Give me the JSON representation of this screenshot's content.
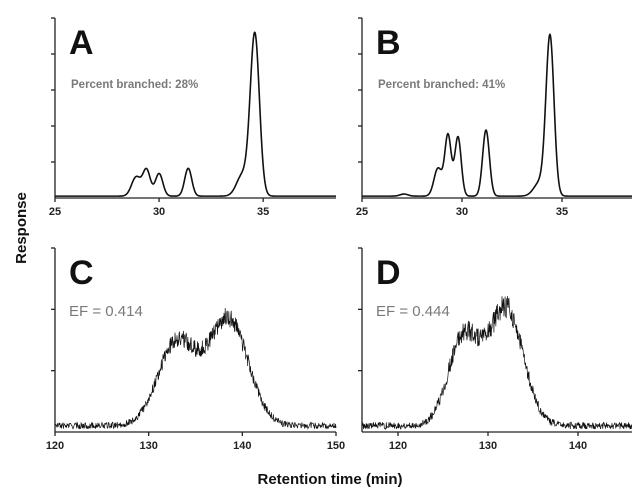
{
  "figure": {
    "ylabel": "Response",
    "xlabel": "Retention time (min)"
  },
  "chart_data": [
    {
      "panel": "A",
      "type": "line",
      "annotation": "Percent branched: 28%",
      "xlim": [
        25,
        38.5
      ],
      "ylim": [
        0,
        1
      ],
      "xticks": [
        25,
        30,
        35
      ],
      "yticks": 5,
      "baseline": 0.005,
      "noise": 0,
      "peaks": [
        {
          "center": 28.9,
          "height": 0.11,
          "width": 0.22
        },
        {
          "center": 29.4,
          "height": 0.15,
          "width": 0.18
        },
        {
          "center": 30.0,
          "height": 0.13,
          "width": 0.18
        },
        {
          "center": 31.4,
          "height": 0.16,
          "width": 0.17
        },
        {
          "center": 34.0,
          "height": 0.12,
          "width": 0.28
        },
        {
          "center": 34.6,
          "height": 0.93,
          "width": 0.22
        }
      ]
    },
    {
      "panel": "B",
      "type": "line",
      "annotation": "Percent branched: 41%",
      "xlim": [
        25,
        38.5
      ],
      "ylim": [
        0,
        1
      ],
      "xticks": [
        25,
        30,
        35
      ],
      "yticks": 5,
      "baseline": 0.005,
      "noise": 0,
      "peaks": [
        {
          "center": 27.1,
          "height": 0.012,
          "width": 0.2
        },
        {
          "center": 28.8,
          "height": 0.16,
          "width": 0.2
        },
        {
          "center": 29.3,
          "height": 0.35,
          "width": 0.16
        },
        {
          "center": 29.8,
          "height": 0.34,
          "width": 0.16
        },
        {
          "center": 31.2,
          "height": 0.38,
          "width": 0.17
        },
        {
          "center": 33.9,
          "height": 0.08,
          "width": 0.3
        },
        {
          "center": 34.4,
          "height": 0.91,
          "width": 0.2
        }
      ]
    },
    {
      "panel": "C",
      "type": "line",
      "annotation": "EF = 0.414",
      "xlim": [
        120,
        150
      ],
      "ylim": [
        0,
        1
      ],
      "xticks": [
        120,
        130,
        140,
        150
      ],
      "yticks": 3,
      "baseline": 0.03,
      "noise": 0.04,
      "peaks": [
        {
          "center": 133.0,
          "height": 0.47,
          "width": 2.0
        },
        {
          "center": 138.5,
          "height": 0.6,
          "width": 2.1
        }
      ]
    },
    {
      "panel": "D",
      "type": "line",
      "annotation": "EF = 0.444",
      "xlim": [
        116,
        146
      ],
      "ylim": [
        0,
        1
      ],
      "xticks": [
        120,
        130,
        140
      ],
      "yticks": 3,
      "baseline": 0.03,
      "noise": 0.045,
      "peaks": [
        {
          "center": 127.3,
          "height": 0.5,
          "width": 1.7
        },
        {
          "center": 132.0,
          "height": 0.66,
          "width": 1.9
        }
      ]
    }
  ]
}
